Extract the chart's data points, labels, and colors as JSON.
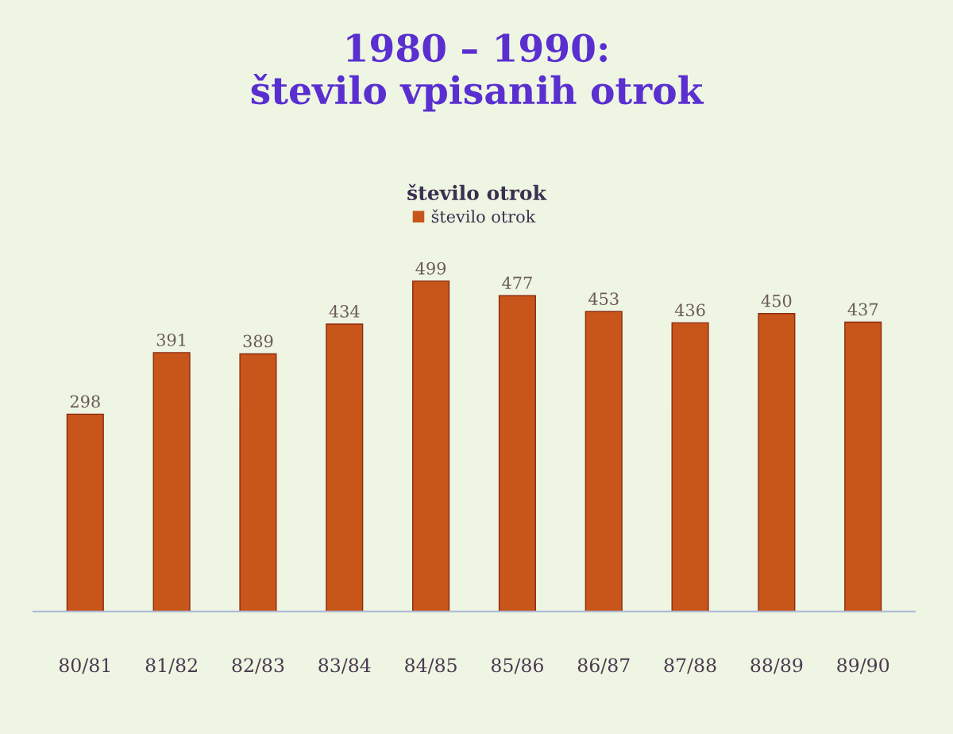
{
  "chart_data": {
    "type": "bar",
    "title": "1980 – 1990:\nštevilo vpisanih otrok",
    "subtitle": "število otrok",
    "categories": [
      "80/81",
      "81/82",
      "82/83",
      "83/84",
      "84/85",
      "85/86",
      "86/87",
      "87/88",
      "88/89",
      "89/90"
    ],
    "series": [
      {
        "name": "število otrok",
        "color": "#c8561a",
        "values": [
          298,
          391,
          389,
          434,
          499,
          477,
          453,
          436,
          450,
          437
        ]
      }
    ],
    "data_labels": true,
    "legend": "top",
    "tick_labels": "x"
  }
}
